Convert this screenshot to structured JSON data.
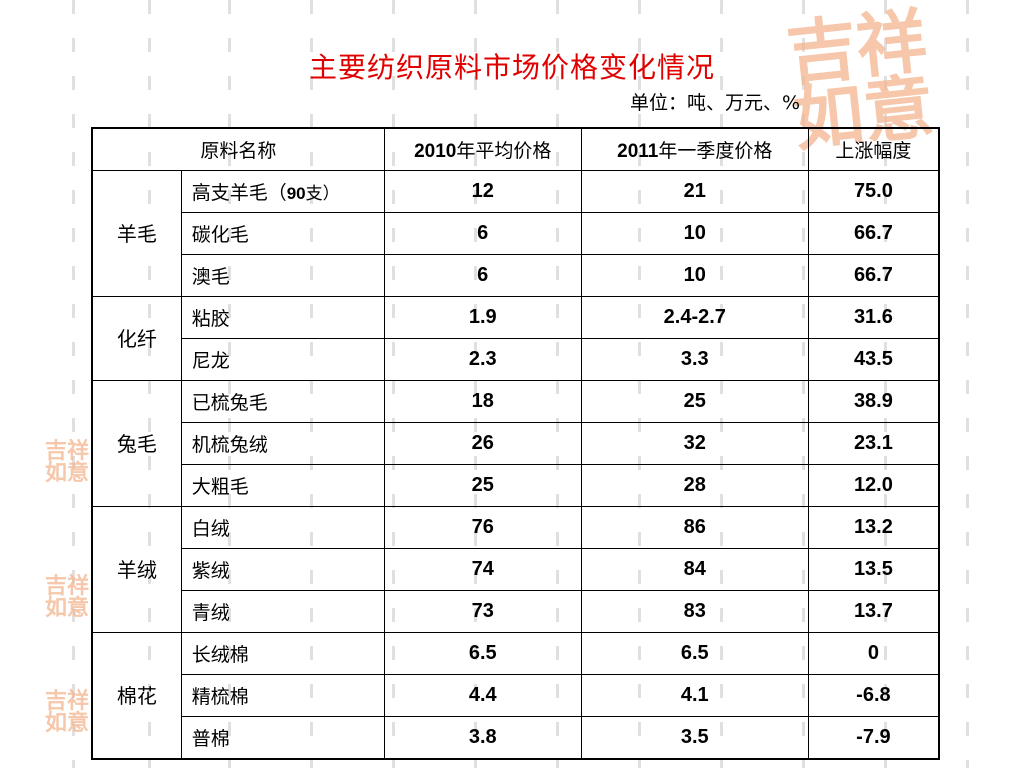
{
  "title": "主要纺织原料市场价格变化情况",
  "unit": "单位：吨、万元、%",
  "colors": {
    "title": "#e00000",
    "seal": "#f3b58e"
  },
  "seal_text": "吉祥如意",
  "table": {
    "headers": {
      "name": "原料名称",
      "v2010_num": "2010",
      "v2010_text": "年平均价格",
      "v2011_num": "2011",
      "v2011_text": "年一季度价格",
      "rise": "上涨幅度"
    },
    "groups": [
      {
        "label": "羊毛",
        "rows": [
          {
            "name": "高支羊毛（",
            "name_b": "90",
            "name_end": "支）",
            "v2010": "12",
            "v2011": "21",
            "rise": "75.0"
          },
          {
            "name": "碳化毛",
            "v2010": "6",
            "v2011": "10",
            "rise": "66.7"
          },
          {
            "name": "澳毛",
            "v2010": "6",
            "v2011": "10",
            "rise": "66.7"
          }
        ]
      },
      {
        "label": "化纤",
        "rows": [
          {
            "name": "粘胶",
            "v2010": "1.9",
            "v2011": "2.4-2.7",
            "rise": "31.6"
          },
          {
            "name": "尼龙",
            "v2010": "2.3",
            "v2011": "3.3",
            "rise": "43.5"
          }
        ]
      },
      {
        "label": "兔毛",
        "rows": [
          {
            "name": "已梳兔毛",
            "v2010": "18",
            "v2011": "25",
            "rise": "38.9"
          },
          {
            "name": "机梳兔绒",
            "v2010": "26",
            "v2011": "32",
            "rise": "23.1"
          },
          {
            "name": "大粗毛",
            "v2010": "25",
            "v2011": "28",
            "rise": "12.0"
          }
        ]
      },
      {
        "label": "羊绒",
        "rows": [
          {
            "name": "白绒",
            "v2010": "76",
            "v2011": "86",
            "rise": "13.2"
          },
          {
            "name": "紫绒",
            "v2010": "74",
            "v2011": "84",
            "rise": "13.5"
          },
          {
            "name": "青绒",
            "v2010": "73",
            "v2011": "83",
            "rise": "13.7"
          }
        ]
      },
      {
        "label": "棉花",
        "rows": [
          {
            "name": "长绒棉",
            "v2010": "6.5",
            "v2011": "6.5",
            "rise": "0"
          },
          {
            "name": "精梳棉",
            "v2010": "4.4",
            "v2011": "4.1",
            "rise": "-6.8"
          },
          {
            "name": "普棉",
            "v2010": "3.8",
            "v2011": "3.5",
            "rise": "-7.9"
          }
        ]
      }
    ]
  }
}
